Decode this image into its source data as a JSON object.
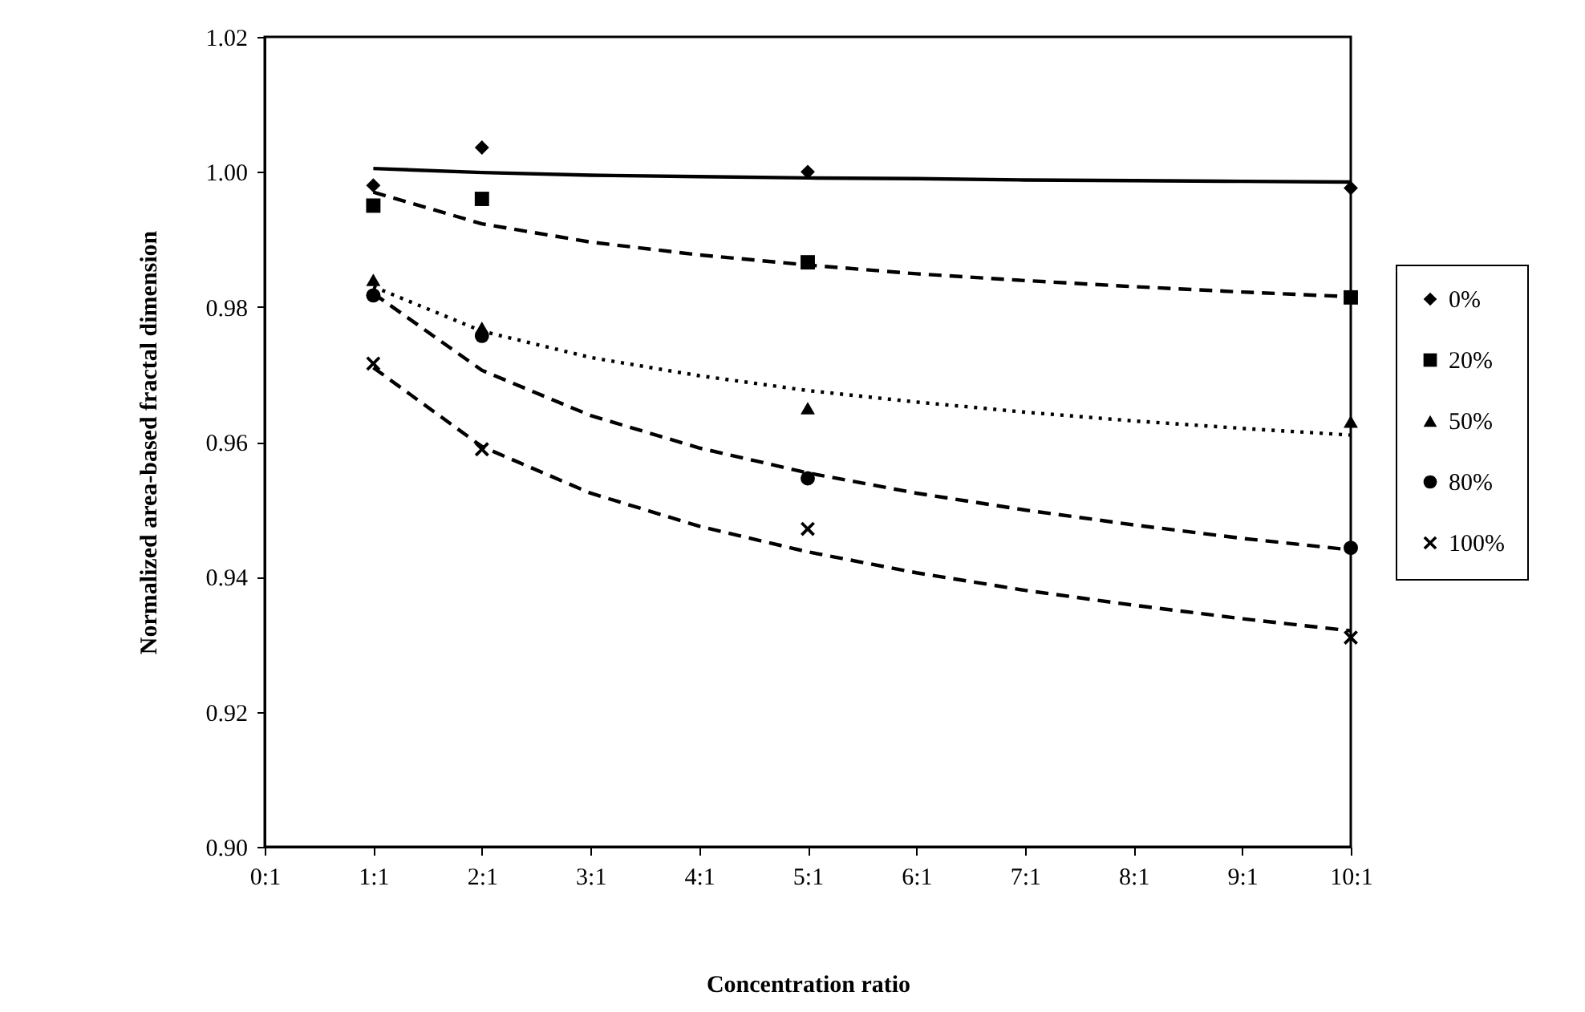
{
  "chart_data": {
    "type": "scatter",
    "xlabel": "Concentration ratio",
    "ylabel": "Normalized area-based fractal dimension",
    "categories": [
      "0:1",
      "1:1",
      "2:1",
      "3:1",
      "4:1",
      "5:1",
      "6:1",
      "7:1",
      "8:1",
      "9:1",
      "10:1"
    ],
    "ylim": [
      0.9,
      1.02
    ],
    "yticks": [
      {
        "value": 0.9,
        "label": "0.90"
      },
      {
        "value": 0.92,
        "label": "0.92"
      },
      {
        "value": 0.94,
        "label": "0.94"
      },
      {
        "value": 0.96,
        "label": "0.96"
      },
      {
        "value": 0.98,
        "label": "0.98"
      },
      {
        "value": 1.0,
        "label": "1.00"
      },
      {
        "value": 1.02,
        "label": "1.02"
      }
    ],
    "grid": false,
    "legend": "right",
    "series": [
      {
        "type": "line",
        "color": "#000000",
        "line_style": "solid",
        "x": [
          "1:1",
          "2:1",
          "3:1",
          "4:1",
          "5:1",
          "6:1",
          "7:1",
          "8:1",
          "9:1",
          "10:1"
        ],
        "values": [
          1.0005,
          0.9999,
          0.9995,
          0.9993,
          0.9991,
          0.999,
          0.9988,
          0.9987,
          0.9986,
          0.9985
        ]
      },
      {
        "type": "line",
        "color": "#000000",
        "line_style": "dashed",
        "x": [
          "1:1",
          "2:1",
          "3:1",
          "4:1",
          "5:1",
          "6:1",
          "7:1",
          "8:1",
          "9:1",
          "10:1"
        ],
        "values": [
          0.997,
          0.9923,
          0.9896,
          0.9877,
          0.9862,
          0.9849,
          0.9839,
          0.983,
          0.9822,
          0.9815
        ]
      },
      {
        "type": "line",
        "color": "#000000",
        "line_style": "dotted",
        "x": [
          "1:1",
          "2:1",
          "3:1",
          "4:1",
          "5:1",
          "6:1",
          "7:1",
          "8:1",
          "9:1",
          "10:1"
        ],
        "values": [
          0.983,
          0.9764,
          0.9725,
          0.9698,
          0.9676,
          0.9659,
          0.9644,
          0.9631,
          0.962,
          0.961
        ]
      },
      {
        "type": "line",
        "color": "#000000",
        "line_style": "dashed",
        "x": [
          "1:1",
          "2:1",
          "3:1",
          "4:1",
          "5:1",
          "6:1",
          "7:1",
          "8:1",
          "9:1",
          "10:1"
        ],
        "values": [
          0.982,
          0.9706,
          0.9639,
          0.9591,
          0.9554,
          0.9524,
          0.9499,
          0.9477,
          0.9457,
          0.944
        ]
      },
      {
        "type": "line",
        "color": "#000000",
        "line_style": "dashed",
        "x": [
          "1:1",
          "2:1",
          "3:1",
          "4:1",
          "5:1",
          "6:1",
          "7:1",
          "8:1",
          "9:1",
          "10:1"
        ],
        "values": [
          0.971,
          0.9593,
          0.9524,
          0.9475,
          0.9437,
          0.9406,
          0.938,
          0.9358,
          0.9338,
          0.932
        ]
      },
      {
        "name": "0%",
        "color": "#000000",
        "marker": "diamond",
        "x": [
          "1:1",
          "2:1",
          "5:1",
          "10:1"
        ],
        "values": [
          0.998,
          1.0036,
          1.0,
          0.9976
        ]
      },
      {
        "name": "20%",
        "color": "#000000",
        "marker": "square",
        "x": [
          "1:1",
          "2:1",
          "5:1",
          "10:1"
        ],
        "values": [
          0.995,
          0.996,
          0.9866,
          0.9814
        ]
      },
      {
        "name": "50%",
        "color": "#000000",
        "marker": "triangle",
        "x": [
          "1:1",
          "2:1",
          "5:1",
          "10:1"
        ],
        "values": [
          0.984,
          0.9769,
          0.965,
          0.963
        ]
      },
      {
        "name": "80%",
        "color": "#000000",
        "marker": "circle",
        "x": [
          "1:1",
          "2:1",
          "5:1",
          "10:1"
        ],
        "values": [
          0.9817,
          0.9757,
          0.9546,
          0.9443
        ]
      },
      {
        "name": "100%",
        "color": "#000000",
        "marker": "cross",
        "x": [
          "1:1",
          "2:1",
          "5:1",
          "10:1"
        ],
        "values": [
          0.9716,
          0.9589,
          0.9471,
          0.931
        ]
      }
    ]
  }
}
